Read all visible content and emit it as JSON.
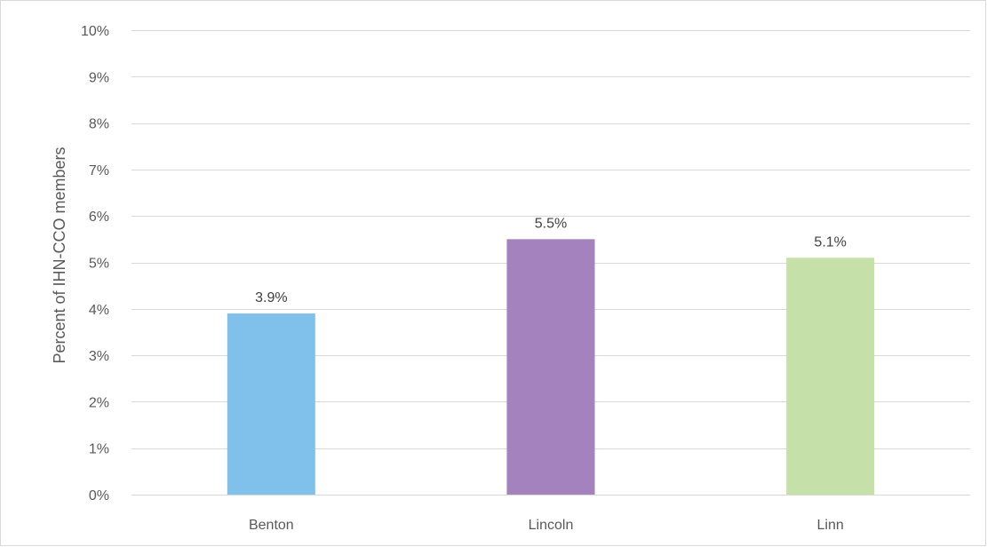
{
  "chart_data": {
    "type": "bar",
    "title": "",
    "xlabel": "",
    "ylabel": "Percent of IHN-CCO members",
    "categories": [
      "Benton",
      "Lincoln",
      "Linn"
    ],
    "values": [
      3.9,
      5.5,
      5.1
    ],
    "data_labels": [
      "3.9%",
      "5.5%",
      "5.1%"
    ],
    "bar_colors": [
      "#7fc1ea",
      "#a482bd",
      "#c5e0a8"
    ],
    "ylim": [
      0,
      10
    ],
    "y_ticks": [
      0,
      1,
      2,
      3,
      4,
      5,
      6,
      7,
      8,
      9,
      10
    ],
    "y_tick_labels": [
      "0%",
      "1%",
      "2%",
      "3%",
      "4%",
      "5%",
      "6%",
      "7%",
      "8%",
      "9%",
      "10%"
    ],
    "grid": true,
    "gridline_color": "#d9d9d9",
    "legend": "none"
  }
}
